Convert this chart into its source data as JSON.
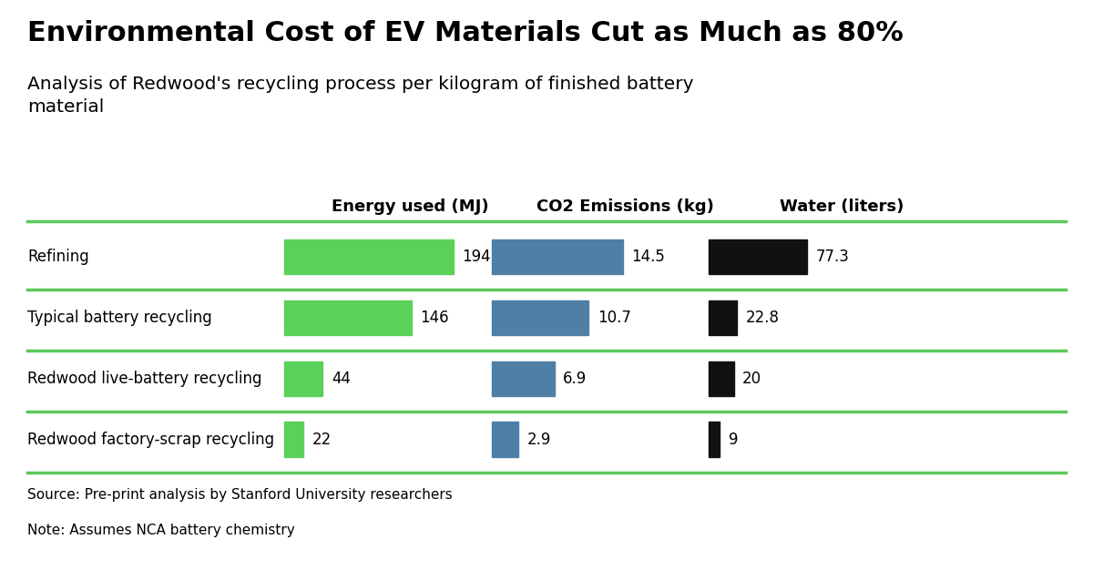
{
  "title": "Environmental Cost of EV Materials Cut as Much as 80%",
  "subtitle": "Analysis of Redwood's recycling process per kilogram of finished battery\nmaterial",
  "categories": [
    "Refining",
    "Typical battery recycling",
    "Redwood live-battery recycling",
    "Redwood factory-scrap recycling"
  ],
  "col_headers": [
    "Energy used (MJ)",
    "CO2 Emissions (kg)",
    "Water (liters)"
  ],
  "energy_values": [
    194,
    146,
    44,
    22
  ],
  "co2_values": [
    14.5,
    10.7,
    6.9,
    2.9
  ],
  "water_values": [
    77.3,
    22.8,
    20.0,
    9.0
  ],
  "energy_color": "#5BD15A",
  "co2_color": "#4E7FA6",
  "water_color": "#111111",
  "energy_max": 194,
  "co2_max": 14.5,
  "water_max": 77.3,
  "source_text": "Source: Pre-print analysis by Stanford University researchers",
  "note_text": "Note: Assumes NCA battery chemistry",
  "bg_color": "#FFFFFF",
  "text_color": "#000000",
  "title_fontsize": 22,
  "subtitle_fontsize": 14.5,
  "header_fontsize": 13,
  "label_fontsize": 12,
  "value_fontsize": 12,
  "source_fontsize": 11,
  "separator_color": "#5CC85A",
  "separator_linewidth": 2.5
}
